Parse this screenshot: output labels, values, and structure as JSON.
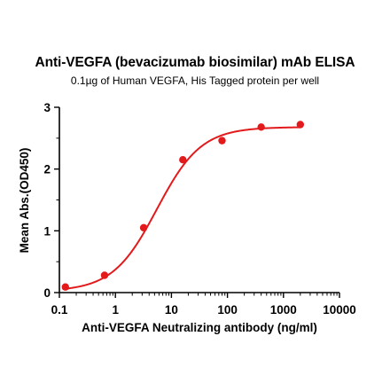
{
  "chart_data": {
    "type": "scatter",
    "title": "Anti-VEGFA (bevacizumab biosimilar) mAb ELISA",
    "subtitle": "0.1µg of Human VEGFA, His Tagged protein per well",
    "xlabel": "Anti-VEGFA Neutralizing antibody (ng/ml)",
    "ylabel": "Mean Abs.(OD450)",
    "x_scale": "log",
    "xlim": [
      0.1,
      10000
    ],
    "ylim": [
      0,
      3
    ],
    "x_ticks": [
      "0.1",
      "1",
      "10",
      "100",
      "1000",
      "10000"
    ],
    "y_ticks": [
      "0",
      "1",
      "2",
      "3"
    ],
    "grid": false,
    "series": [
      {
        "color": "#e31a1c",
        "x": [
          0.128,
          0.64,
          3.2,
          16,
          80,
          400,
          2000
        ],
        "y": [
          0.09,
          0.28,
          1.05,
          2.15,
          2.46,
          2.68,
          2.72
        ],
        "fit": "4PL"
      }
    ]
  }
}
